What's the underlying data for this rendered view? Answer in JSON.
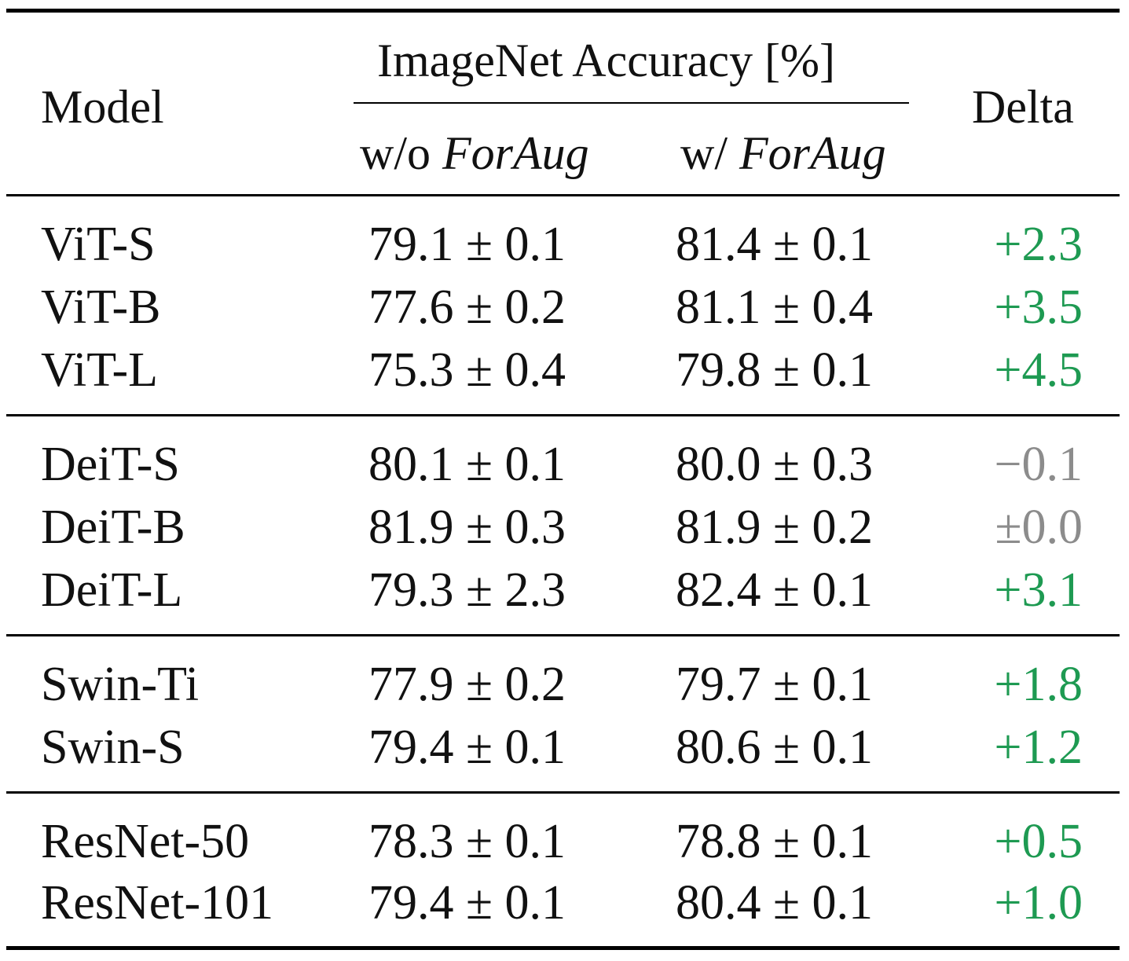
{
  "header": {
    "model": "Model",
    "group": "ImageNet Accuracy [%]",
    "wo_prefix": "w/o ",
    "w_prefix": "w/ ",
    "method": "ForAug",
    "delta": "Delta"
  },
  "groups": [
    {
      "rows": [
        {
          "model": "ViT-S",
          "without": "79.1 ± 0.1",
          "with": "81.4 ± 0.1",
          "delta": "+2.3",
          "delta_kind": "pos"
        },
        {
          "model": "ViT-B",
          "without": "77.6 ± 0.2",
          "with": "81.1 ± 0.4",
          "delta": "+3.5",
          "delta_kind": "pos"
        },
        {
          "model": "ViT-L",
          "without": "75.3 ± 0.4",
          "with": "79.8 ± 0.1",
          "delta": "+4.5",
          "delta_kind": "pos"
        }
      ]
    },
    {
      "rows": [
        {
          "model": "DeiT-S",
          "without": "80.1 ± 0.1",
          "with": "80.0 ± 0.3",
          "delta": "−0.1",
          "delta_kind": "neutral"
        },
        {
          "model": "DeiT-B",
          "without": "81.9 ± 0.3",
          "with": "81.9 ± 0.2",
          "delta": "±0.0",
          "delta_kind": "neutral"
        },
        {
          "model": "DeiT-L",
          "without": "79.3 ± 2.3",
          "with": "82.4 ± 0.1",
          "delta": "+3.1",
          "delta_kind": "pos"
        }
      ]
    },
    {
      "rows": [
        {
          "model": "Swin-Ti",
          "without": "77.9 ± 0.2",
          "with": "79.7 ± 0.1",
          "delta": "+1.8",
          "delta_kind": "pos"
        },
        {
          "model": "Swin-S",
          "without": "79.4 ± 0.1",
          "with": "80.6 ± 0.1",
          "delta": "+1.2",
          "delta_kind": "pos"
        }
      ]
    },
    {
      "rows": [
        {
          "model": "ResNet-50",
          "without": "78.3 ± 0.1",
          "with": "78.8 ± 0.1",
          "delta": "+0.5",
          "delta_kind": "pos"
        },
        {
          "model": "ResNet-101",
          "without": "79.4 ± 0.1",
          "with": "80.4 ± 0.1",
          "delta": "+1.0",
          "delta_kind": "pos"
        }
      ]
    }
  ],
  "colors": {
    "positive": "#1e9a52",
    "neutral": "#8c8c8c"
  }
}
